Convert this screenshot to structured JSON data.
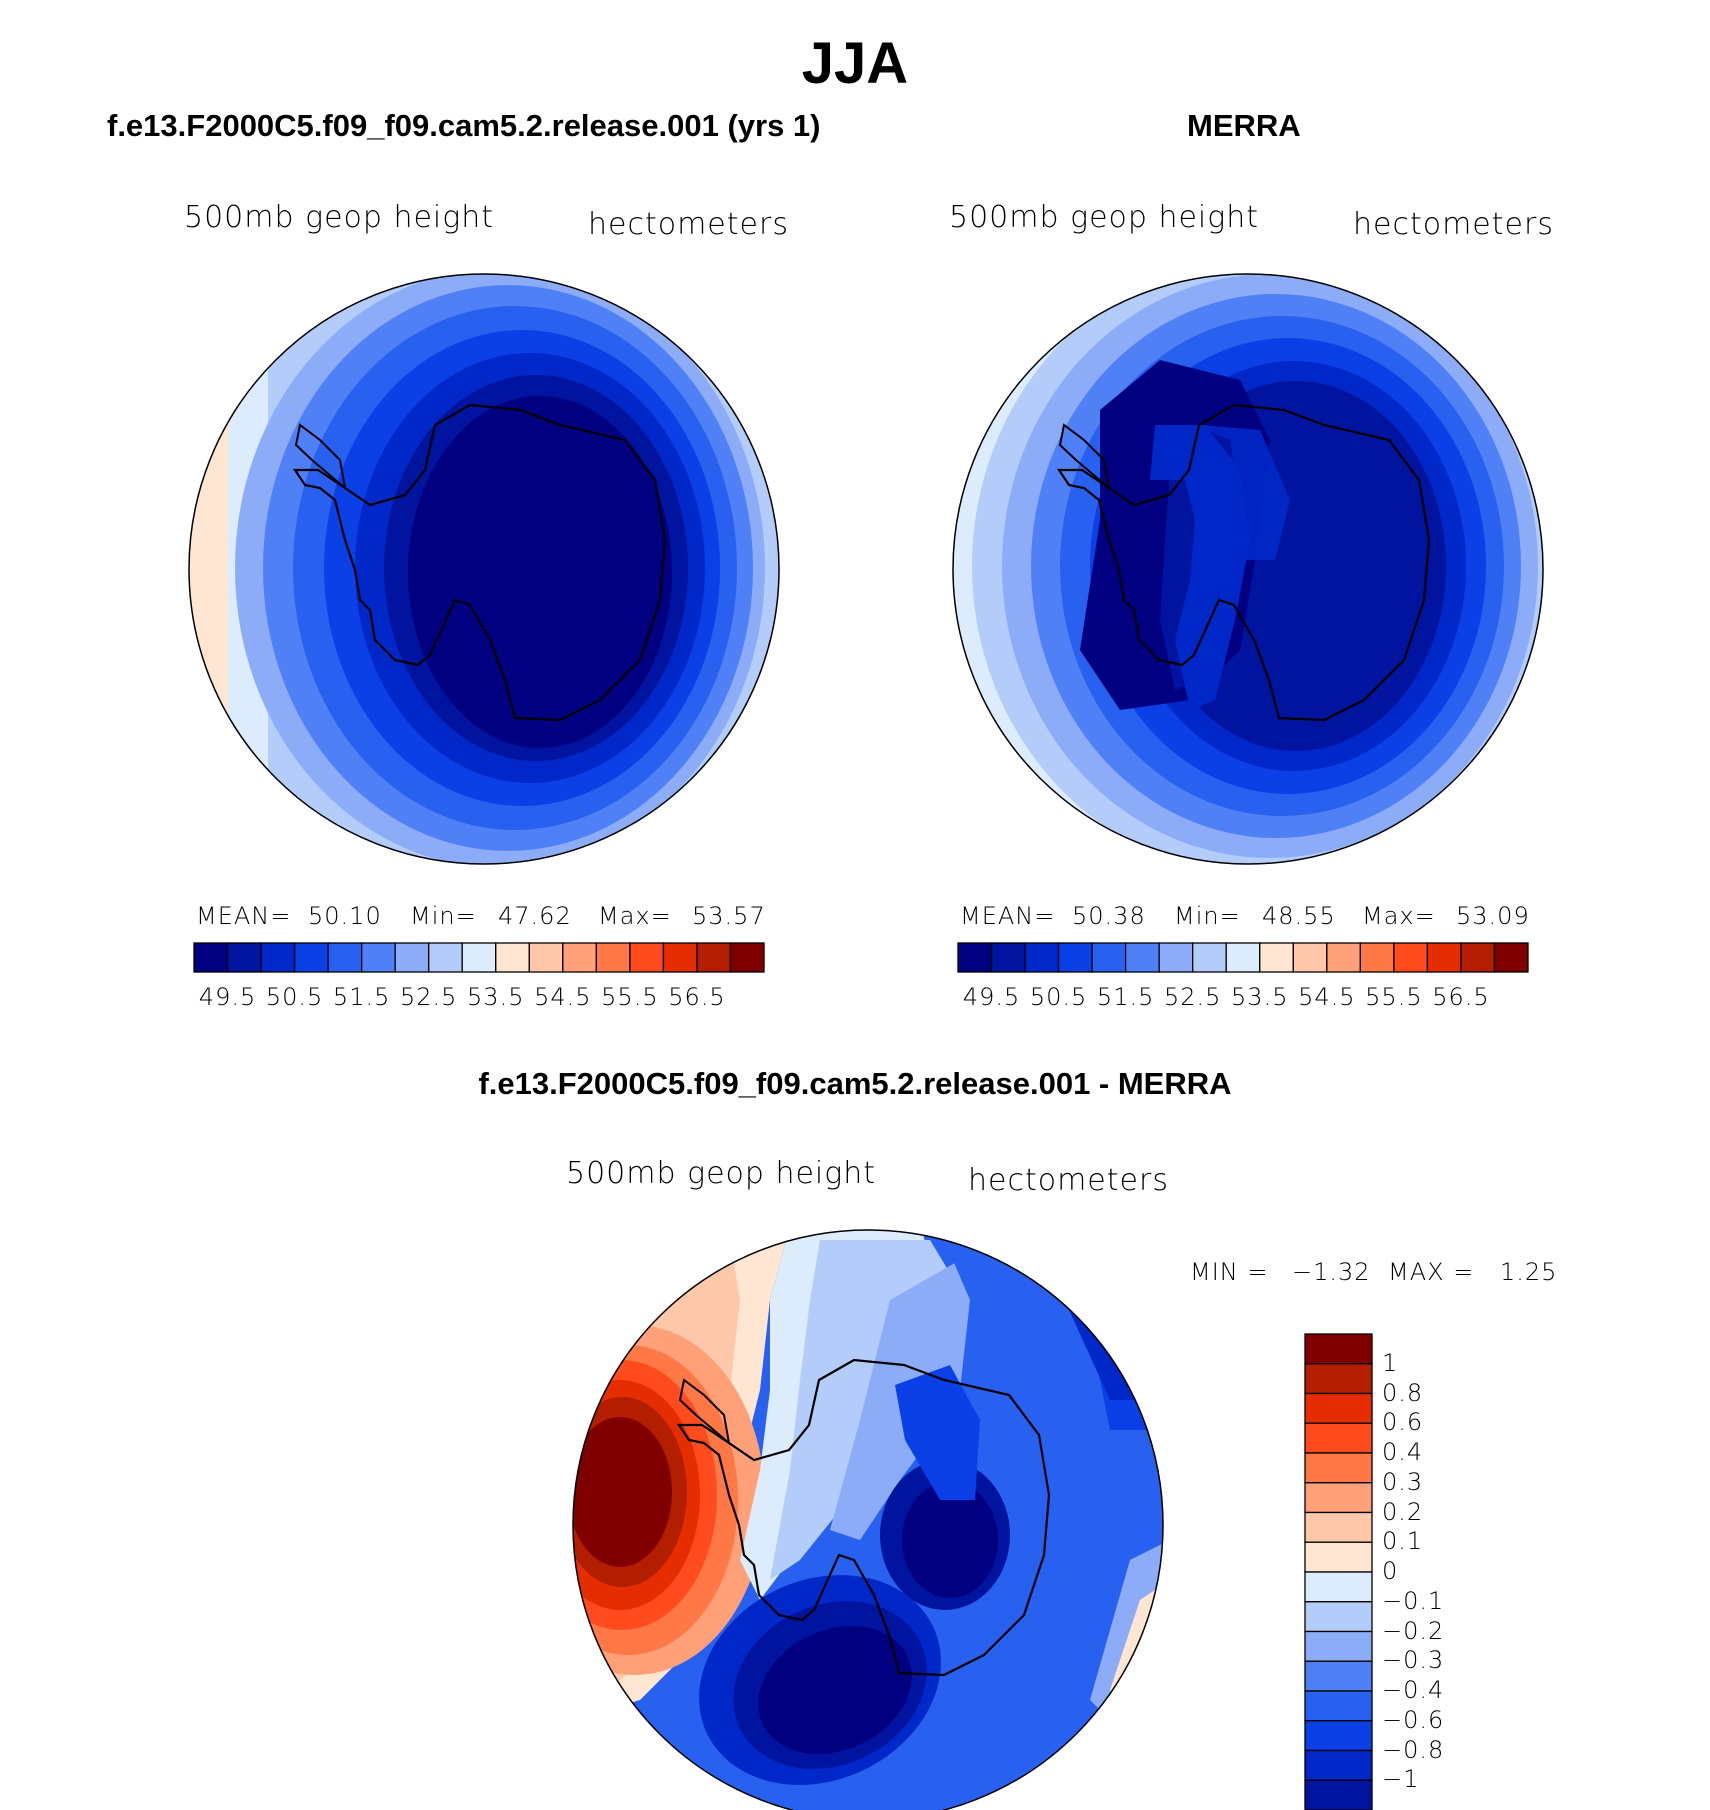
{
  "title": "JJA",
  "panels": [
    {
      "title": "f.e13.F2000C5.f09_f09.cam5.2.release.001 (yrs 1)",
      "variable": "500mb geop height",
      "units": "hectometers",
      "stats": {
        "mean_label": "MEAN=",
        "mean": "50.10",
        "min_label": "Min=",
        "min": "47.62",
        "max_label": "Max=",
        "max": "53.57"
      }
    },
    {
      "title": "MERRA",
      "variable": "500mb geop height",
      "units": "hectometers",
      "stats": {
        "mean_label": "MEAN=",
        "mean": "50.38",
        "min_label": "Min=",
        "min": "48.55",
        "max_label": "Max=",
        "max": "53.09"
      }
    }
  ],
  "abs_colorbar": {
    "colors": [
      "#000080",
      "#00149f",
      "#0028c8",
      "#0a40e6",
      "#2860f0",
      "#5080f5",
      "#8cacf8",
      "#b4ccfa",
      "#dcecfc",
      "#ffe6d2",
      "#ffc8aa",
      "#ffa078",
      "#ff7846",
      "#ff4b1e",
      "#e62d00",
      "#b41e00",
      "#800000"
    ],
    "tick_labels": [
      "49.5",
      "50.5",
      "51.5",
      "52.5",
      "53.5",
      "54.5",
      "55.5",
      "56.5"
    ]
  },
  "diff_panel": {
    "title": "f.e13.F2000C5.f09_f09.cam5.2.release.001 - MERRA",
    "variable": "500mb geop height",
    "units": "hectometers",
    "minmax": {
      "min_label": "MIN =",
      "min": "−1.32",
      "max_label": "MAX =",
      "max": "1.25"
    }
  },
  "diff_colorbar": {
    "colors_top_to_bottom": [
      "#800000",
      "#b41e00",
      "#e62d00",
      "#ff4b1e",
      "#ff7846",
      "#ffa078",
      "#ffc8aa",
      "#ffe6d2",
      "#dcecfc",
      "#b4ccfa",
      "#8cacf8",
      "#5080f5",
      "#2860f0",
      "#0a40e6",
      "#0028c8",
      "#00149f"
    ],
    "tick_labels": [
      "1",
      "0.8",
      "0.6",
      "0.4",
      "0.3",
      "0.2",
      "0.1",
      "0",
      "−0.1",
      "−0.2",
      "−0.3",
      "−0.4",
      "−0.6",
      "−0.8",
      "−1"
    ]
  }
}
